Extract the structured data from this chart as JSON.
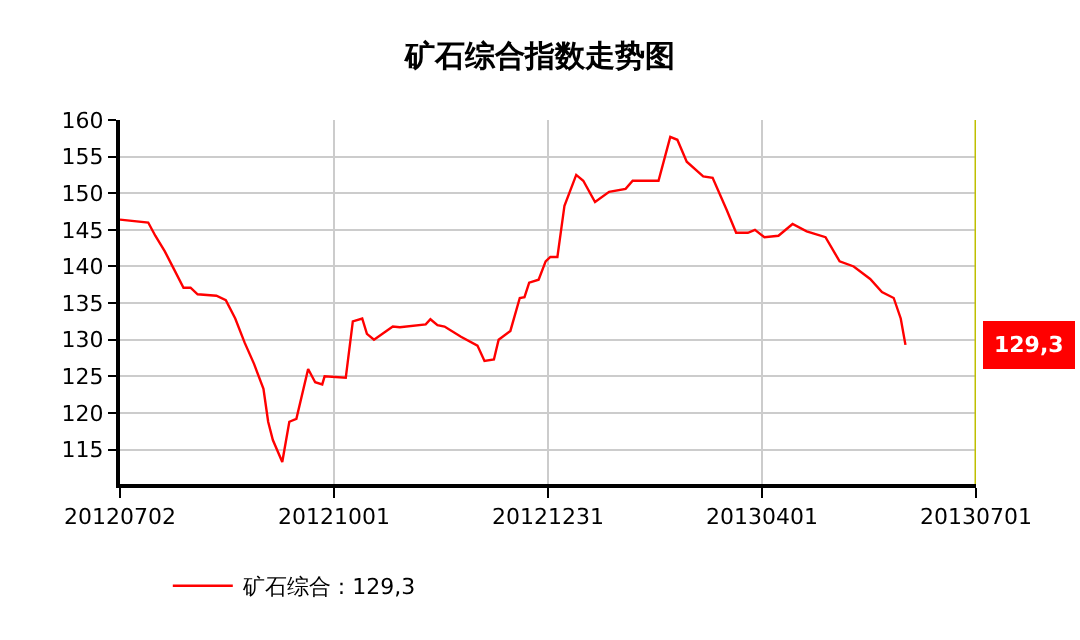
{
  "chart_data": {
    "type": "line",
    "title": "矿石综合指数走势图",
    "x": [
      "2012-07-02",
      "2012-07-14",
      "2012-07-17",
      "2012-07-21",
      "2012-07-25",
      "2012-07-29",
      "2012-08-01",
      "2012-08-04",
      "2012-08-12",
      "2012-08-16",
      "2012-08-20",
      "2012-08-24",
      "2012-08-28",
      "2012-09-01",
      "2012-09-03",
      "2012-09-05",
      "2012-09-09",
      "2012-09-12",
      "2012-09-15",
      "2012-09-20",
      "2012-09-23",
      "2012-09-26",
      "2012-09-27",
      "2012-10-06",
      "2012-10-09",
      "2012-10-13",
      "2012-10-15",
      "2012-10-18",
      "2012-10-26",
      "2012-10-29",
      "2012-11-09",
      "2012-11-11",
      "2012-11-14",
      "2012-11-17",
      "2012-11-24",
      "2012-12-01",
      "2012-12-04",
      "2012-12-08",
      "2012-12-10",
      "2012-12-15",
      "2012-12-19",
      "2012-12-21",
      "2012-12-23",
      "2012-12-27",
      "2012-12-30",
      "2013-01-01",
      "2013-01-04",
      "2013-01-07",
      "2013-01-12",
      "2013-01-15",
      "2013-01-20",
      "2013-01-26",
      "2013-02-02",
      "2013-02-05",
      "2013-02-16",
      "2013-02-21",
      "2013-02-24",
      "2013-02-28",
      "2013-03-07",
      "2013-03-11",
      "2013-03-17",
      "2013-03-21",
      "2013-03-26",
      "2013-03-29",
      "2013-04-02",
      "2013-04-08",
      "2013-04-14",
      "2013-04-20",
      "2013-04-28",
      "2013-05-04",
      "2013-05-10",
      "2013-05-17",
      "2013-05-22",
      "2013-05-27",
      "2013-05-30",
      "2013-06-01"
    ],
    "series": [
      {
        "name": "矿石综合 : 129,3",
        "color": "#ff0000",
        "values": [
          146.4,
          146.0,
          144.2,
          142.1,
          139.6,
          137.1,
          137.1,
          136.2,
          136.0,
          135.4,
          132.9,
          129.6,
          126.7,
          123.3,
          118.8,
          116.3,
          113.3,
          118.8,
          119.2,
          126.0,
          124.2,
          123.9,
          125.0,
          124.8,
          132.5,
          132.9,
          130.8,
          130.0,
          131.8,
          131.7,
          132.1,
          132.8,
          132.0,
          131.8,
          130.4,
          129.2,
          127.1,
          127.3,
          130.0,
          131.2,
          135.7,
          135.8,
          137.8,
          138.2,
          140.7,
          141.3,
          141.3,
          148.3,
          152.5,
          151.7,
          148.8,
          150.2,
          150.6,
          151.7,
          151.7,
          157.7,
          157.3,
          154.3,
          152.3,
          152.1,
          147.7,
          144.6,
          144.6,
          145.0,
          144.0,
          144.2,
          145.8,
          144.8,
          144.0,
          140.7,
          140.0,
          138.3,
          136.5,
          135.7,
          132.9,
          129.3
        ]
      }
    ],
    "xlim": [
      "2012-07-02",
      "2013-07-01"
    ],
    "xticks": [
      {
        "value": "2012-07-02",
        "label": "20120702"
      },
      {
        "value": "2012-10-01",
        "label": "20121001"
      },
      {
        "value": "2012-12-31",
        "label": "20121231"
      },
      {
        "value": "2013-04-01",
        "label": "20130401"
      },
      {
        "value": "2013-07-01",
        "label": "20130701"
      }
    ],
    "ylim": [
      110.3,
      160
    ],
    "yticks": [
      115,
      120,
      125,
      130,
      135,
      140,
      145,
      150,
      155,
      160
    ],
    "grid": true,
    "legend": "bottom left",
    "annotations": [
      {
        "text": "129,3",
        "x": "2013-07-01",
        "y": 129.3
      }
    ],
    "ref_lines": [
      {
        "axis": "x",
        "value": "2013-07-01",
        "color": "#bfbf00"
      }
    ]
  }
}
